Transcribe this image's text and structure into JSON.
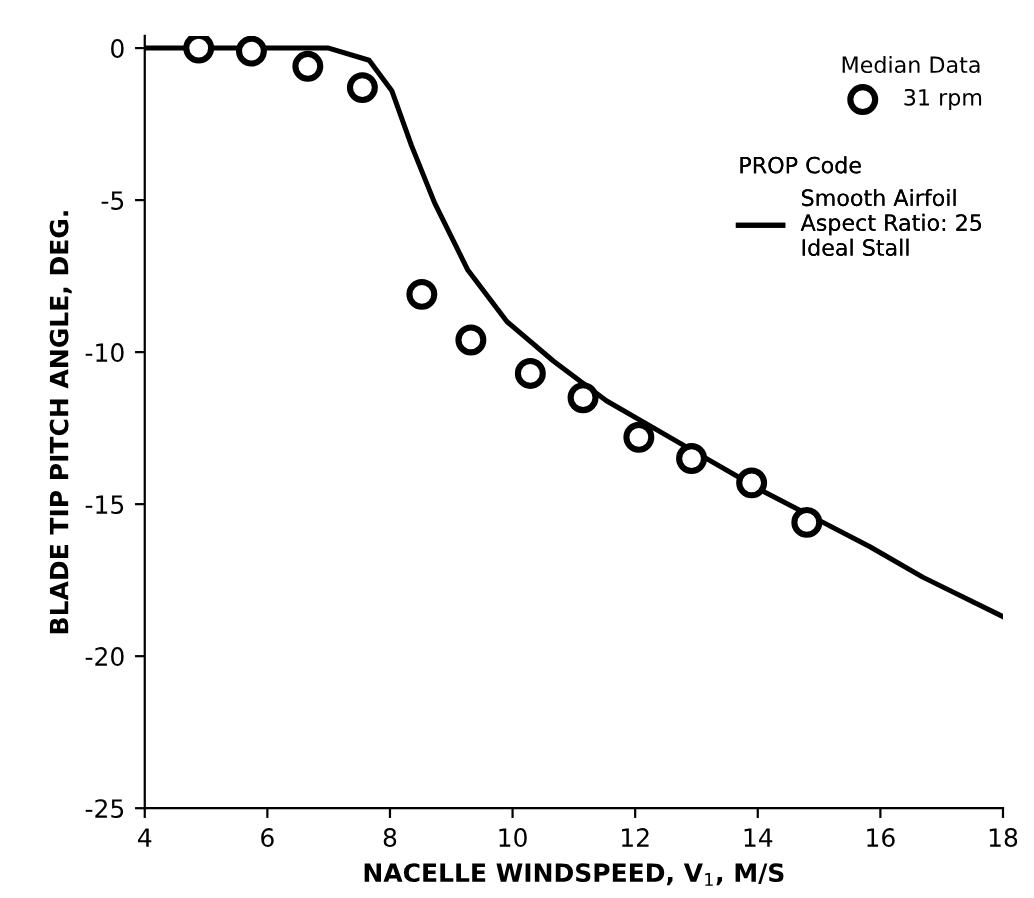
{
  "chart_data": {
    "type": "scatter",
    "xlabel": "NACELLE WINDSPEED, V$_{1}$, M/S",
    "ylabel": "BLADE TIP PITCH ANGLE, DEG.",
    "annotations": [
      "Median Data",
      "PROP Code"
    ],
    "xlim": [
      4,
      18
    ],
    "ylim": [
      -25,
      0.4
    ],
    "xticks": [
      4,
      6,
      8,
      10,
      12,
      14,
      16,
      18
    ],
    "yticks": [
      0,
      -5,
      -10,
      -15,
      -20,
      -25
    ],
    "grid": false,
    "legend": "top right",
    "series": [
      {
        "name": "31 rpm",
        "marker": "circle",
        "color": "#000000",
        "x": [
          4.88,
          5.74,
          6.66,
          7.55,
          8.52,
          9.32,
          10.29,
          11.15,
          12.06,
          12.92,
          13.9,
          14.8
        ],
        "values": [
          0,
          -0.1,
          -0.6,
          -1.3,
          -8.1,
          -9.6,
          -10.7,
          -11.5,
          -12.8,
          -13.5,
          -14.3,
          -15.6
        ]
      },
      {
        "name": "Smooth Airfoil\nAspect Ratio: 25\nIdeal Stall",
        "type": "line",
        "line_style": "solid",
        "color": "#000000",
        "x": [
          4,
          7.0,
          7.66,
          8.03,
          8.35,
          8.73,
          9.27,
          9.91,
          10.67,
          11.53,
          12.39,
          13.25,
          14.11,
          14.97,
          15.83,
          16.69,
          18
        ],
        "values": [
          0,
          0,
          -0.4,
          -1.4,
          -3.2,
          -5.1,
          -7.3,
          -9.0,
          -10.3,
          -11.6,
          -12.6,
          -13.6,
          -14.6,
          -15.5,
          -16.4,
          -17.4,
          -18.7
        ]
      }
    ]
  }
}
